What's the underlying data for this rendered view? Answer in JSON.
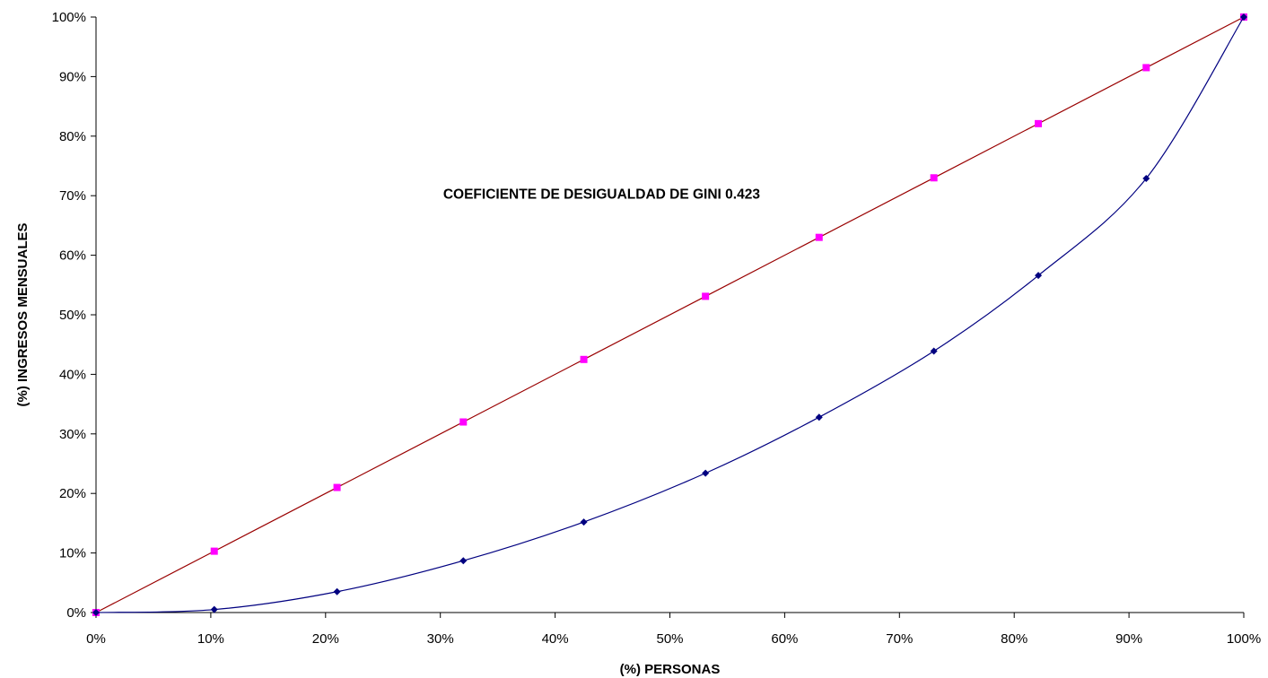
{
  "chart_data": {
    "type": "line",
    "title": "",
    "xlabel": "(%) PERSONAS",
    "ylabel": "(%) INGRESOS MENSUALES",
    "xlim": [
      0,
      100
    ],
    "ylim": [
      0,
      100
    ],
    "x_ticks": [
      "0%",
      "10%",
      "20%",
      "30%",
      "40%",
      "50%",
      "60%",
      "70%",
      "80%",
      "90%",
      "100%"
    ],
    "y_ticks": [
      "0%",
      "10%",
      "20%",
      "30%",
      "40%",
      "50%",
      "60%",
      "70%",
      "80%",
      "90%",
      "100%"
    ],
    "grid": false,
    "legend": "none",
    "annotations": [
      {
        "text": "COEFICIENTE DE DESIGUALDAD DE GINI 0.423",
        "x": 36.5,
        "y": 69.5
      }
    ],
    "series": [
      {
        "color": "#990000",
        "marker": "square",
        "marker_color": "#ff00ff",
        "smooth": false,
        "points": [
          [
            0,
            0
          ],
          [
            10.3,
            10.3
          ],
          [
            21.0,
            21.0
          ],
          [
            32.0,
            32.0
          ],
          [
            42.5,
            42.5
          ],
          [
            53.1,
            53.1
          ],
          [
            63.0,
            63.0
          ],
          [
            73.0,
            73.0
          ],
          [
            82.1,
            82.1
          ],
          [
            91.5,
            91.5
          ],
          [
            100,
            100
          ]
        ]
      },
      {
        "color": "#000080",
        "marker": "diamond",
        "marker_color": "#000080",
        "smooth": true,
        "points": [
          [
            0,
            0
          ],
          [
            10.3,
            0.5
          ],
          [
            21.0,
            3.5
          ],
          [
            32.0,
            8.7
          ],
          [
            42.5,
            15.2
          ],
          [
            53.1,
            23.4
          ],
          [
            63.0,
            32.8
          ],
          [
            73.0,
            43.9
          ],
          [
            82.1,
            56.6
          ],
          [
            91.5,
            72.9
          ],
          [
            100,
            100
          ]
        ]
      }
    ]
  }
}
